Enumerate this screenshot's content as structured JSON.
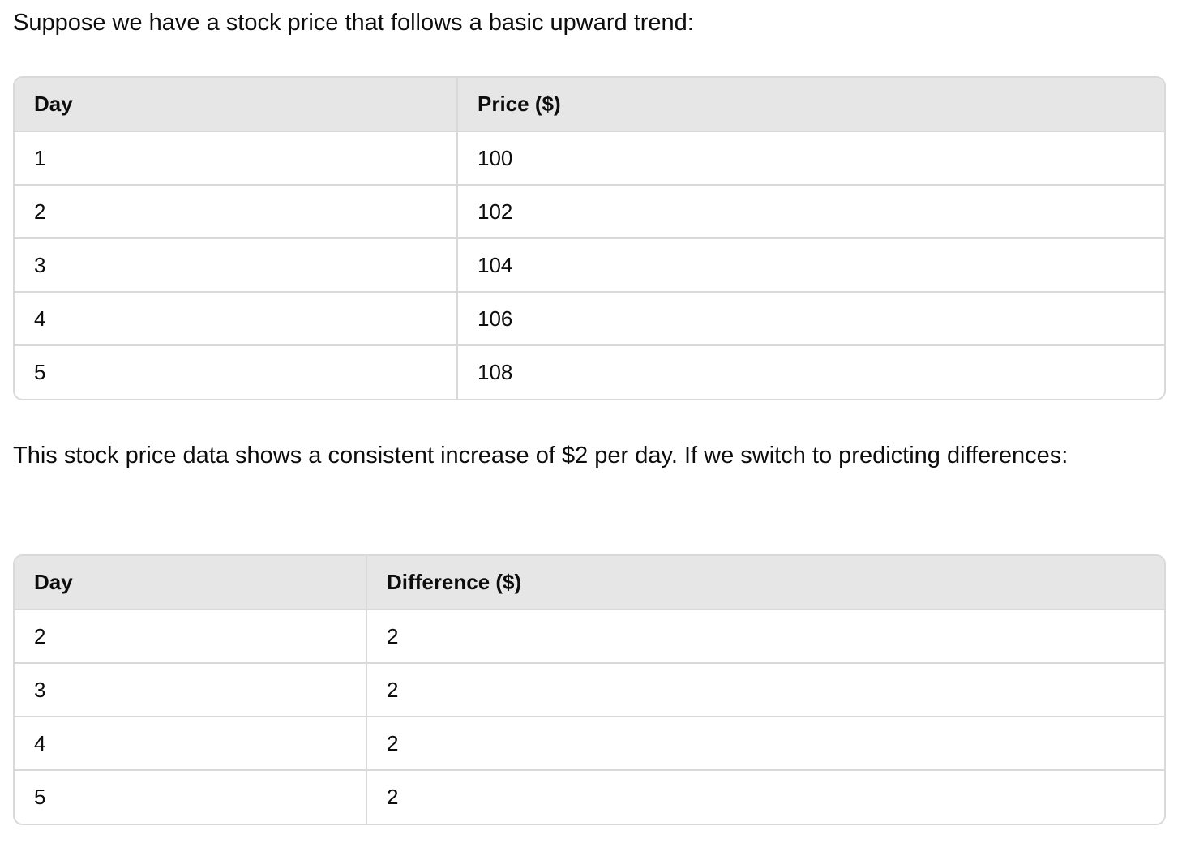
{
  "intro_text": "Suppose we have a stock price that follows a basic upward trend:",
  "price_table": {
    "headers": [
      "Day",
      "Price ($)"
    ],
    "rows": [
      [
        "1",
        "100"
      ],
      [
        "2",
        "102"
      ],
      [
        "3",
        "104"
      ],
      [
        "4",
        "106"
      ],
      [
        "5",
        "108"
      ]
    ]
  },
  "middle_text": "This stock price data shows a consistent increase of $2 per day. If we switch to predicting differences:",
  "difference_table": {
    "headers": [
      "Day",
      "Difference ($)"
    ],
    "rows": [
      [
        "2",
        "2"
      ],
      [
        "3",
        "2"
      ],
      [
        "4",
        "2"
      ],
      [
        "5",
        "2"
      ]
    ]
  }
}
